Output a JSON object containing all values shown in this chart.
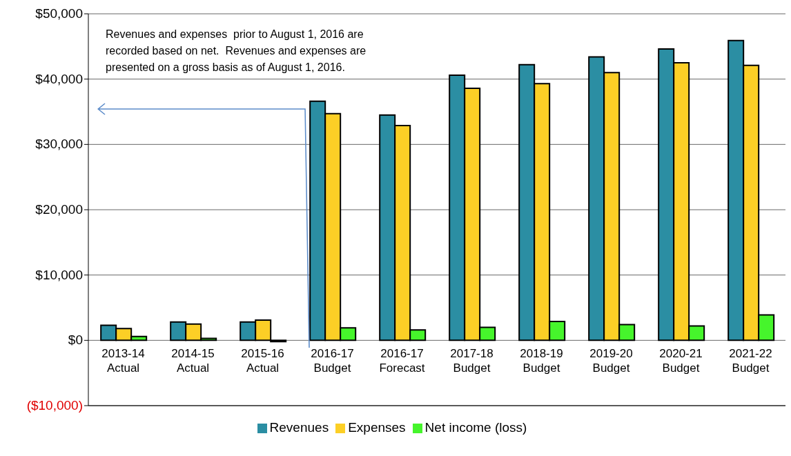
{
  "chart_data": {
    "type": "bar",
    "categories": [
      "2013-14 Actual",
      "2014-15 Actual",
      "2015-16 Actual",
      "2016-17 Budget",
      "2016-17 Forecast",
      "2017-18 Budget",
      "2018-19 Budget",
      "2019-20 Budget",
      "2020-21 Budget",
      "2021-22 Budget"
    ],
    "series": [
      {
        "name": "Revenues",
        "color": "#2b8ea3",
        "values": [
          2300,
          2800,
          2800,
          36600,
          34500,
          40600,
          42200,
          43400,
          44600,
          45900
        ]
      },
      {
        "name": "Expenses",
        "color": "#fccf26",
        "values": [
          1800,
          2500,
          3100,
          34700,
          32900,
          38600,
          39300,
          41000,
          42500,
          42100
        ]
      },
      {
        "name": "Net income (loss)",
        "color": "#46f52c",
        "values": [
          600,
          300,
          -200,
          1900,
          1600,
          2000,
          2900,
          2400,
          2200,
          3900
        ]
      }
    ],
    "ylim": [
      -10000,
      50000
    ],
    "yticks": [
      {
        "value": -10000,
        "label": "($10,000)"
      },
      {
        "value": 0,
        "label": "$0"
      },
      {
        "value": 10000,
        "label": "$10,000"
      },
      {
        "value": 20000,
        "label": "$20,000"
      },
      {
        "value": 30000,
        "label": "$30,000"
      },
      {
        "value": 40000,
        "label": "$40,000"
      },
      {
        "value": 50000,
        "label": "$50,000"
      }
    ],
    "grid": "y",
    "legend": "bottom",
    "annotations": [
      "Revenues and expenses  prior to August 1, 2016 are recorded based on net.  Revenues and expenses are presented on a gross basis as of August 1, 2016."
    ]
  }
}
